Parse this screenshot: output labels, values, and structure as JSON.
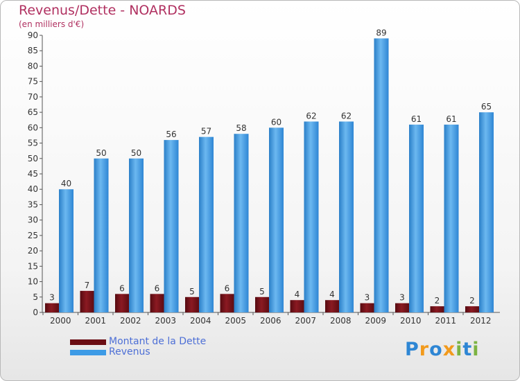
{
  "chart_data": {
    "type": "bar",
    "title": "Revenus/Dette - NOARDS",
    "subtitle": "(en milliers d'€)",
    "categories": [
      "2000",
      "2001",
      "2002",
      "2003",
      "2004",
      "2005",
      "2006",
      "2007",
      "2008",
      "2009",
      "2010",
      "2011",
      "2012"
    ],
    "series": [
      {
        "name": "Montant de la Dette",
        "color": "#6b0e14",
        "values": [
          3,
          7,
          6,
          6,
          5,
          6,
          5,
          4,
          4,
          3,
          3,
          2,
          2
        ]
      },
      {
        "name": "Revenus",
        "color": "#3d9be6",
        "values": [
          40,
          50,
          50,
          56,
          57,
          58,
          60,
          62,
          62,
          89,
          61,
          61,
          65
        ]
      }
    ],
    "ylim": [
      0,
      90
    ],
    "yticks": [
      0,
      5,
      10,
      15,
      20,
      25,
      30,
      35,
      40,
      45,
      50,
      55,
      60,
      65,
      70,
      75,
      80,
      85,
      90
    ],
    "grid": false,
    "legend_position": "bottom-left"
  },
  "brand": {
    "text": "Proxiti",
    "letters": [
      {
        "ch": "P",
        "color": "#2e86d4"
      },
      {
        "ch": "r",
        "color": "#f29a1c"
      },
      {
        "ch": "o",
        "color": "#2e86d4"
      },
      {
        "ch": "x",
        "color": "#f29a1c"
      },
      {
        "ch": "i",
        "color": "#7cb342"
      },
      {
        "ch": "t",
        "color": "#2e86d4"
      },
      {
        "ch": "i",
        "color": "#7cb342"
      }
    ]
  }
}
